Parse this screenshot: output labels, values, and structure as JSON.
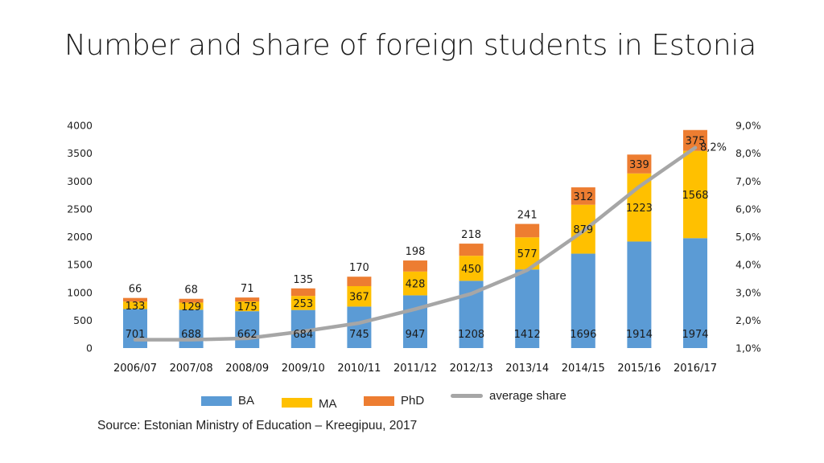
{
  "title": "Number and share of foreign students in Estonia",
  "source": "Source: Estonian Ministry of Education – Kreegipuu, 2017",
  "legend": {
    "ba": "BA",
    "ma": "MA",
    "phd": "PhD",
    "avg": "average share"
  },
  "colors": {
    "ba": "#5B9BD5",
    "ma": "#FFC000",
    "phd": "#ED7D31",
    "avg": "#A6A6A6"
  },
  "chart_data": {
    "type": "bar",
    "stacked": true,
    "categories": [
      "2006/07",
      "2007/08",
      "2008/09",
      "2009/10",
      "2010/11",
      "2011/12",
      "2012/13",
      "2013/14",
      "2014/15",
      "2015/16",
      "2016/17"
    ],
    "series": [
      {
        "name": "BA",
        "values": [
          701,
          688,
          662,
          684,
          745,
          947,
          1208,
          1412,
          1696,
          1914,
          1974
        ]
      },
      {
        "name": "MA",
        "values": [
          133,
          129,
          175,
          253,
          367,
          428,
          450,
          577,
          879,
          1223,
          1568
        ]
      },
      {
        "name": "PhD",
        "values": [
          66,
          68,
          71,
          135,
          170,
          198,
          218,
          241,
          312,
          339,
          375
        ]
      }
    ],
    "line_series": {
      "name": "average share",
      "values": [
        1.3,
        1.3,
        1.35,
        1.6,
        1.9,
        2.4,
        2.95,
        3.8,
        5.2,
        6.8,
        8.2
      ],
      "end_label": "8,2%"
    },
    "y_ticks": [
      "0",
      "500",
      "1000",
      "1500",
      "2000",
      "2500",
      "3000",
      "3500",
      "4000"
    ],
    "ylim": [
      0,
      4000
    ],
    "y2_ticks": [
      "1,0%",
      "2,0%",
      "3,0%",
      "4,0%",
      "5,0%",
      "6,0%",
      "7,0%",
      "8,0%",
      "9,0%"
    ],
    "y2lim": [
      1.0,
      9.0
    ],
    "grid": false,
    "legend_position": "bottom"
  }
}
